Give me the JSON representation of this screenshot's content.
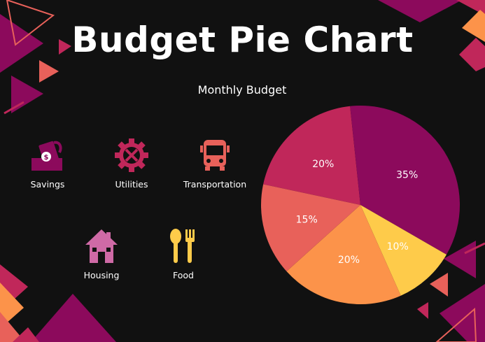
{
  "chart_data": {
    "type": "pie",
    "title": "Budget Pie Chart",
    "subtitle": "Monthly Budget",
    "slices": [
      {
        "label": "Savings",
        "value": 20,
        "display": "20%",
        "color": "#c0275a"
      },
      {
        "label": "Housing",
        "value": 35,
        "display": "35%",
        "color": "#8c0a5c"
      },
      {
        "label": "Food",
        "value": 10,
        "display": "10%",
        "color": "#fecb4a"
      },
      {
        "label": "Utilities",
        "value": 20,
        "display": "20%",
        "color": "#fc934a"
      },
      {
        "label": "Transportation",
        "value": 15,
        "display": "15%",
        "color": "#e8615a"
      }
    ]
  },
  "legend": [
    {
      "label": "Savings",
      "icon": "money-hand-icon",
      "color": "#8c0a5c"
    },
    {
      "label": "Utilities",
      "icon": "gear-tools-icon",
      "color": "#c0275a"
    },
    {
      "label": "Transportation",
      "icon": "bus-icon",
      "color": "#e8615a"
    },
    {
      "label": "Housing",
      "icon": "house-icon",
      "color": "#cf6aa6"
    },
    {
      "label": "Food",
      "icon": "spoon-fork-icon",
      "color": "#fecb4a"
    }
  ]
}
